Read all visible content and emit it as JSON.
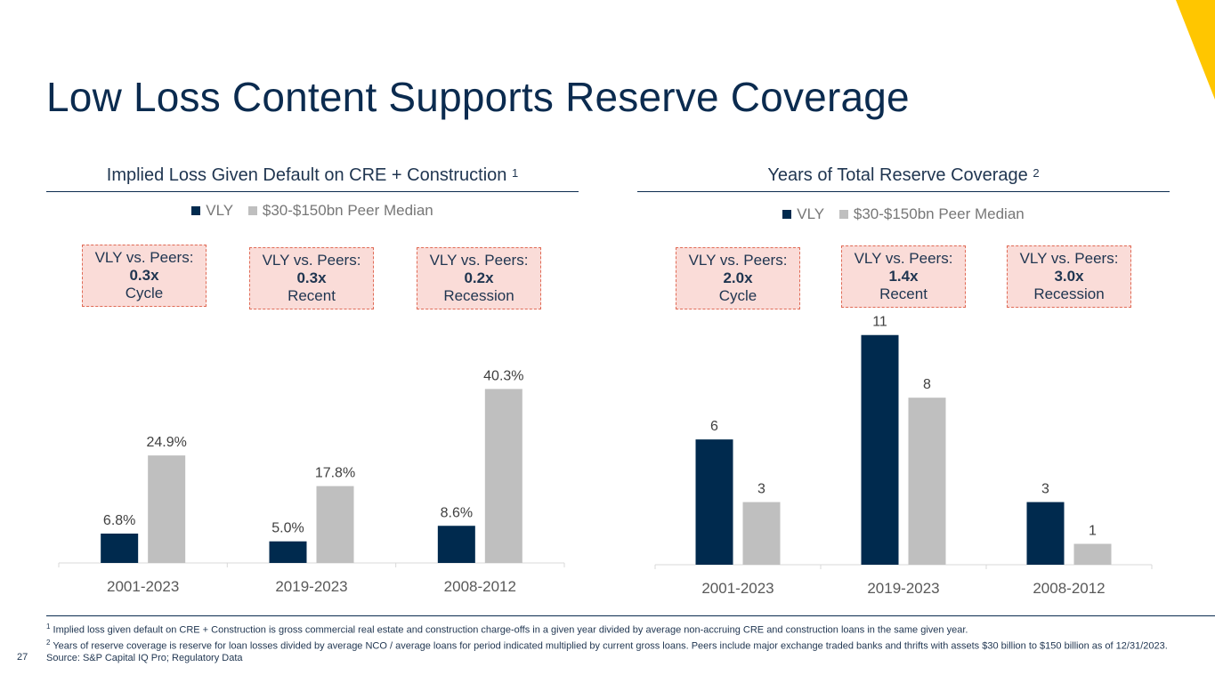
{
  "page": {
    "title": "Low Loss Content Supports Reserve Coverage",
    "page_number": "27",
    "footnotes": [
      {
        "marker": "1",
        "text": "Implied loss given default on CRE + Construction is gross commercial real estate and construction charge-offs in a given year divided by average non-accruing CRE and construction loans in the same given year."
      },
      {
        "marker": "2",
        "text": "Years of reserve coverage is reserve for loan losses divided by average NCO / average loans for period indicated multiplied by current gross loans.  Peers include major exchange traded banks and thrifts with assets $30 billion to $150 billion as of 12/31/2023.  Source: S&P Capital IQ Pro; Regulatory Data"
      }
    ]
  },
  "colors": {
    "vly": "#002a4e",
    "peer": "#bfbfbf",
    "accent": "#ffc600",
    "callout_fill": "#fadcd8",
    "callout_border": "#e06a55"
  },
  "chart_data": [
    {
      "type": "bar",
      "title": "Implied Loss Given Default on CRE + Construction",
      "title_sup": "1",
      "categories": [
        "2001-2023",
        "2019-2023",
        "2008-2012"
      ],
      "series": [
        {
          "name": "VLY",
          "values": [
            6.8,
            5.0,
            8.6
          ],
          "labels": [
            "6.8%",
            "5.0%",
            "8.6%"
          ]
        },
        {
          "name": "$30-$150bn Peer Median",
          "values": [
            24.9,
            17.8,
            40.3
          ],
          "labels": [
            "24.9%",
            "17.8%",
            "40.3%"
          ]
        }
      ],
      "ylim": [
        0,
        48
      ],
      "callouts": [
        {
          "heading": "VLY vs. Peers:",
          "multiple": "0.3x",
          "period": "Cycle"
        },
        {
          "heading": "VLY vs. Peers:",
          "multiple": "0.3x",
          "period": "Recent"
        },
        {
          "heading": "VLY vs. Peers:",
          "multiple": "0.2x",
          "period": "Recession"
        }
      ]
    },
    {
      "type": "bar",
      "title": "Years of Total Reserve Coverage",
      "title_sup": "2",
      "categories": [
        "2001-2023",
        "2019-2023",
        "2008-2012"
      ],
      "series": [
        {
          "name": "VLY",
          "values": [
            6,
            11,
            3
          ],
          "labels": [
            "6",
            "11",
            "3"
          ]
        },
        {
          "name": "$30-$150bn Peer Median",
          "values": [
            3,
            8,
            1
          ],
          "labels": [
            "3",
            "8",
            "1"
          ]
        }
      ],
      "ylim": [
        0,
        11.5
      ],
      "callouts": [
        {
          "heading": "VLY vs. Peers:",
          "multiple": "2.0x",
          "period": "Cycle"
        },
        {
          "heading": "VLY vs. Peers:",
          "multiple": "1.4x",
          "period": "Recent"
        },
        {
          "heading": "VLY vs. Peers:",
          "multiple": "3.0x",
          "period": "Recession"
        }
      ]
    }
  ]
}
